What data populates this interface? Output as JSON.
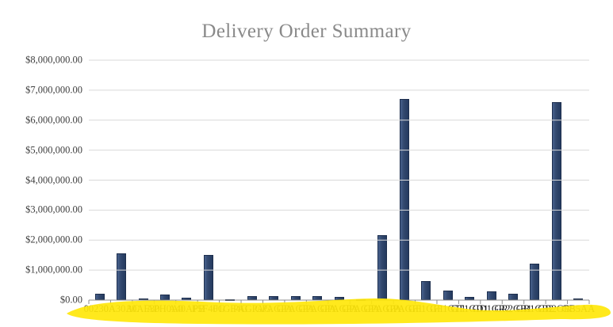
{
  "chart_data": {
    "type": "bar",
    "title": "Delivery Order Summary",
    "xlabel": "",
    "ylabel": "",
    "ylim": [
      0,
      8000000
    ],
    "y_tick_step": 1000000,
    "y_tick_labels": [
      "$0.00",
      "$1,000,000.00",
      "$2,000,000.00",
      "$3,000,000.00",
      "$4,000,000.00",
      "$5,000,000.00",
      "$6,000,000.00",
      "$7,000,000.00",
      "$8,000,000.00"
    ],
    "grid": "horizontal",
    "legend": false,
    "categories": [
      "00230A",
      "0A30AC",
      "30AE30",
      "APH0A0",
      "A40APB",
      "F5F40G",
      "F1GF4G",
      "PAGPAG",
      "GPAGPA",
      "GPAGPA",
      "GPAGPA",
      "GPAGPA",
      "GPAGPA",
      "GPAGPA",
      "GPAGF1",
      "GF1GF1",
      "GF1GT1",
      "GT1GD1",
      "GD1GR2",
      "GR2GB1",
      "GB1GB2",
      "GB2GB5",
      "GB5AA"
    ],
    "values": [
      200000,
      1550000,
      50000,
      180000,
      70000,
      1500000,
      15000,
      125000,
      130000,
      140000,
      125000,
      115000,
      35000,
      2160000,
      6700000,
      640000,
      330000,
      100000,
      300000,
      200000,
      1210000,
      6600000,
      60000
    ],
    "note": "x-axis category codes overlap illegibly in source; strip is covered by a yellow highlighter annotation"
  },
  "colors": {
    "title": "#898989",
    "bar_fill": "#2e4468",
    "bar_border": "#1e2f4e",
    "gridline": "#d9d9d9",
    "axis": "#8c8c8c",
    "y_label": "#3f3f3f",
    "x_label": "#1f1f1f",
    "highlighter": "#ffe70a"
  }
}
